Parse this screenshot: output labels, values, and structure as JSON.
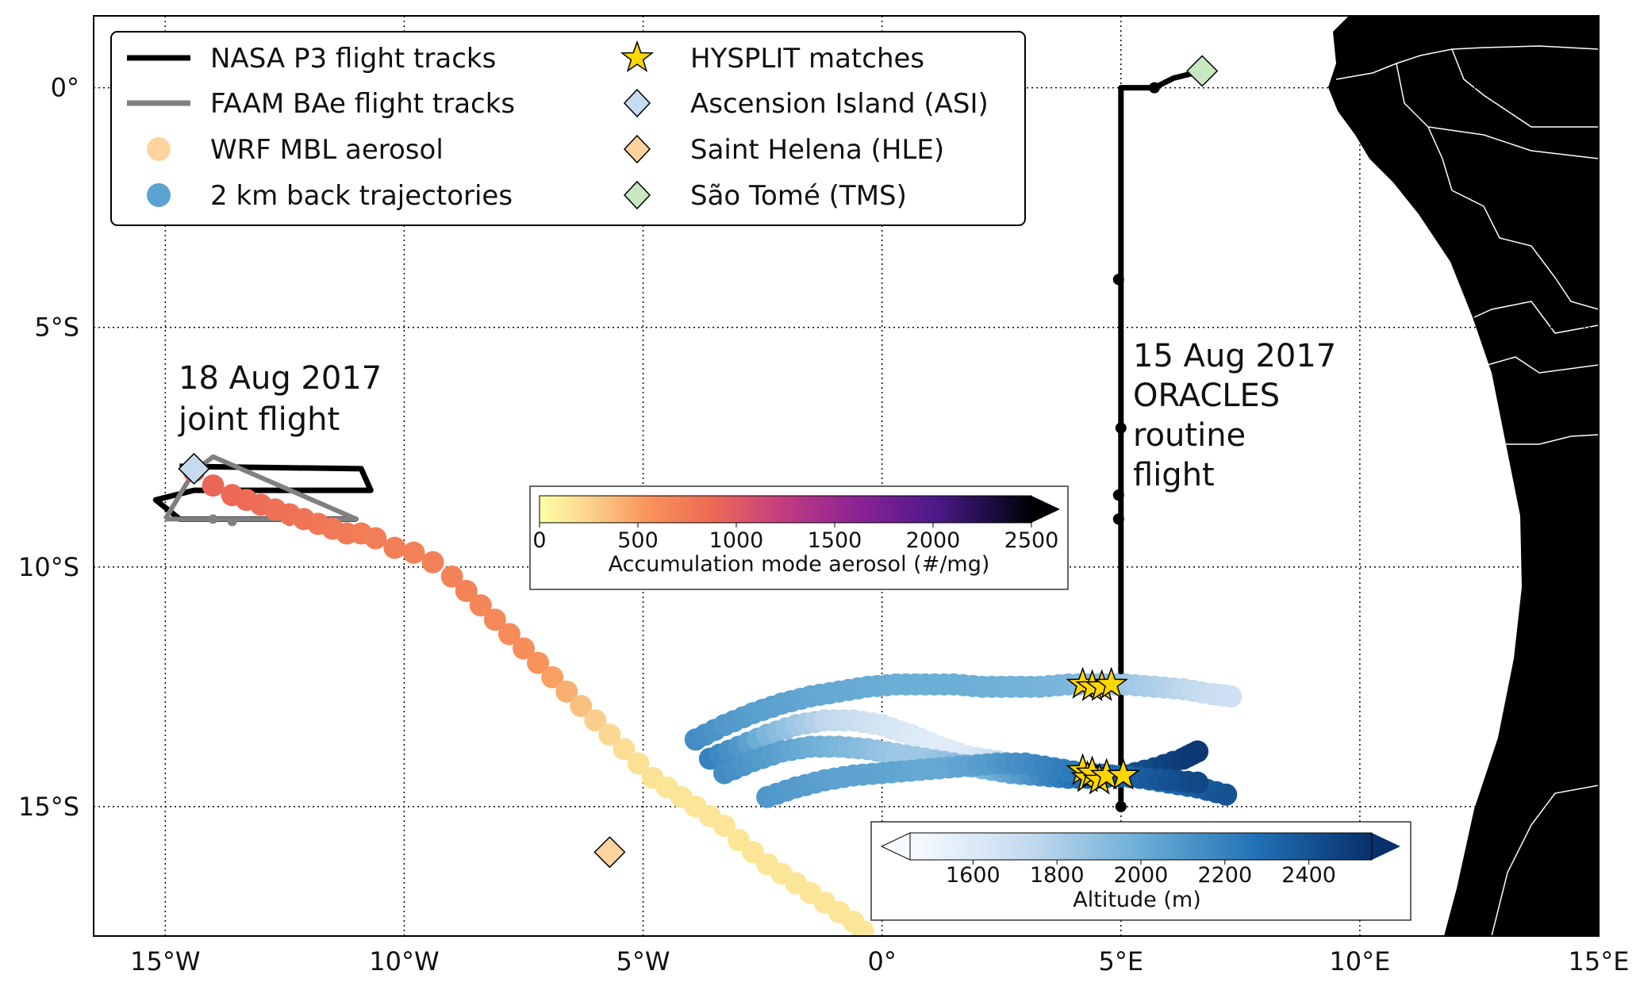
{
  "map": {
    "lon_range": [
      -16.5,
      15
    ],
    "lat_range": [
      -17.7,
      1.5
    ],
    "x_ticks": [
      {
        "value": -15,
        "label": "15°W"
      },
      {
        "value": -10,
        "label": "10°W"
      },
      {
        "value": -5,
        "label": "5°W"
      },
      {
        "value": 0,
        "label": "0°"
      },
      {
        "value": 5,
        "label": "5°E"
      },
      {
        "value": 10,
        "label": "10°E"
      },
      {
        "value": 15,
        "label": "15°E"
      }
    ],
    "y_ticks": [
      {
        "value": 0,
        "label": "0°"
      },
      {
        "value": -5,
        "label": "5°S"
      },
      {
        "value": -10,
        "label": "10°S"
      },
      {
        "value": -15,
        "label": "15°S"
      }
    ],
    "grid": "dotted",
    "land_color": "#000000",
    "border_color": "#ffffff"
  },
  "legend": {
    "placement": "top-left",
    "entries": [
      {
        "key": "p3",
        "label": "NASA P3 flight tracks",
        "symbol": "line",
        "color": "#000000"
      },
      {
        "key": "bae",
        "label": "FAAM BAe flight tracks",
        "symbol": "line",
        "color": "#808080"
      },
      {
        "key": "wrf",
        "label": "WRF MBL aerosol",
        "symbol": "circle",
        "color": "#fdd49e"
      },
      {
        "key": "traj",
        "label": "2 km back trajectories",
        "symbol": "circle",
        "color": "#5ba3d0"
      },
      {
        "key": "hysplit",
        "label": "HYSPLIT matches",
        "symbol": "star",
        "color": "#ffd700"
      },
      {
        "key": "asi",
        "label": "Ascension Island (ASI)",
        "symbol": "diamond",
        "color": "#c6dbef"
      },
      {
        "key": "hle",
        "label": "Saint Helena (HLE)",
        "symbol": "diamond",
        "color": "#fdd49e"
      },
      {
        "key": "tms",
        "label": "São Tomé (TMS)",
        "symbol": "diamond",
        "color": "#c7e9c0"
      }
    ]
  },
  "annotations": {
    "joint": [
      "18 Aug 2017",
      "joint flight"
    ],
    "routine": [
      "15 Aug 2017",
      "ORACLES",
      "routine",
      "flight"
    ]
  },
  "colorbars": {
    "aerosol": {
      "label": "Accumulation mode aerosol (#/mg)",
      "ticks": [
        "0",
        "500",
        "1000",
        "1500",
        "2000",
        "2500"
      ],
      "range": [
        0,
        2500
      ],
      "colormap": "inferno_r"
    },
    "altitude": {
      "label": "Altitude (m)",
      "ticks": [
        "1600",
        "1800",
        "2000",
        "2200",
        "2400"
      ],
      "range": [
        1450,
        2550
      ],
      "colormap": "Blues"
    }
  },
  "chart_data": {
    "type": "scatter",
    "stations": [
      {
        "name": "Ascension Island (ASI)",
        "lon": -14.4,
        "lat": -7.95,
        "color": "#c6dbef"
      },
      {
        "name": "Saint Helena (HLE)",
        "lon": -5.7,
        "lat": -15.95,
        "color": "#fdd49e"
      },
      {
        "name": "São Tomé (TMS)",
        "lon": 6.7,
        "lat": 0.35,
        "color": "#c7e9c0"
      }
    ],
    "p3_routine_track": [
      [
        5.0,
        -15.0
      ],
      [
        5.0,
        0.0
      ],
      [
        5.7,
        0.0
      ],
      [
        6.1,
        0.2
      ],
      [
        6.7,
        0.35
      ]
    ],
    "p3_routine_points": [
      [
        5.0,
        -15.0
      ],
      [
        4.95,
        -4.0
      ],
      [
        5.0,
        -7.1
      ],
      [
        4.95,
        -8.5
      ],
      [
        4.95,
        -9.0
      ],
      [
        5.7,
        0.0
      ],
      [
        6.6,
        0.35
      ]
    ],
    "p3_joint_track": [
      [
        -14.7,
        -7.9
      ],
      [
        -10.9,
        -7.95
      ],
      [
        -10.7,
        -8.4
      ],
      [
        -14.4,
        -8.4
      ],
      [
        -15.2,
        -8.6
      ],
      [
        -14.7,
        -9.0
      ],
      [
        -11.0,
        -9.0
      ]
    ],
    "bae_joint_track": [
      [
        -15.0,
        -9.0
      ],
      [
        -11.0,
        -9.0
      ],
      [
        -14.0,
        -7.7
      ],
      [
        -14.4,
        -8.0
      ],
      [
        -15.0,
        -9.0
      ]
    ],
    "bae_joint_points": [
      [
        -13.6,
        -9.05
      ],
      [
        -12.4,
        -9.05
      ],
      [
        -11.7,
        -9.05
      ],
      [
        -14.0,
        -9.0
      ]
    ],
    "wrf_mbl_aerosol": {
      "lon": [
        -14.4,
        -14.0,
        -13.6,
        -13.3,
        -13.0,
        -12.7,
        -12.4,
        -12.1,
        -11.8,
        -11.5,
        -11.2,
        -10.9,
        -10.6,
        -10.2,
        -9.8,
        -9.4,
        -9.0,
        -8.7,
        -8.4,
        -8.1,
        -7.8,
        -7.5,
        -7.2,
        -6.9,
        -6.6,
        -6.3,
        -6.0,
        -5.7,
        -5.4,
        -5.1,
        -4.8,
        -4.5,
        -4.2,
        -3.9,
        -3.6,
        -3.3,
        -3.0,
        -2.7,
        -2.4,
        -2.1,
        -1.8,
        -1.5,
        -1.2,
        -0.9,
        -0.6,
        -0.4
      ],
      "lat": [
        -8.0,
        -8.3,
        -8.5,
        -8.6,
        -8.7,
        -8.8,
        -8.9,
        -9.0,
        -9.1,
        -9.2,
        -9.3,
        -9.3,
        -9.4,
        -9.6,
        -9.7,
        -9.9,
        -10.2,
        -10.5,
        -10.8,
        -11.1,
        -11.4,
        -11.7,
        -12.0,
        -12.3,
        -12.6,
        -12.9,
        -13.2,
        -13.5,
        -13.8,
        -14.1,
        -14.4,
        -14.6,
        -14.8,
        -15.0,
        -15.2,
        -15.4,
        -15.7,
        -15.95,
        -16.2,
        -16.4,
        -16.6,
        -16.8,
        -17.0,
        -17.2,
        -17.4,
        -17.6
      ],
      "aerosol": [
        900,
        900,
        880,
        860,
        850,
        830,
        820,
        800,
        780,
        760,
        740,
        730,
        720,
        710,
        700,
        700,
        690,
        680,
        660,
        640,
        620,
        600,
        560,
        500,
        420,
        340,
        270,
        220,
        190,
        170,
        160,
        150,
        150,
        150,
        150,
        150,
        150,
        150,
        150,
        150,
        150,
        150,
        150,
        150,
        150,
        150
      ]
    },
    "back_trajectories": [
      {
        "lon": [
          -3.9,
          -3.3,
          -2.7,
          -2.1,
          -1.5,
          -0.9,
          -0.3,
          0.3,
          0.9,
          1.5,
          2.1,
          2.7,
          3.3,
          3.9,
          4.5,
          5.1,
          5.7,
          6.3,
          6.9,
          7.3
        ],
        "lat": [
          -13.6,
          -13.3,
          -13.05,
          -12.85,
          -12.7,
          -12.6,
          -12.5,
          -12.45,
          -12.45,
          -12.45,
          -12.5,
          -12.5,
          -12.5,
          -12.45,
          -12.45,
          -12.45,
          -12.5,
          -12.55,
          -12.65,
          -12.7
        ],
        "alt": [
          2150,
          2100,
          2070,
          2050,
          2030,
          2020,
          2010,
          2000,
          2000,
          2000,
          1990,
          1980,
          1970,
          1950,
          1900,
          1850,
          1800,
          1750,
          1700,
          1680
        ]
      },
      {
        "lon": [
          -3.6,
          -3.0,
          -2.4,
          -1.8,
          -1.2,
          -0.6,
          0.0,
          0.6,
          1.2,
          1.8,
          2.4,
          3.0,
          3.6,
          4.2,
          4.8,
          5.4,
          6.0,
          6.6,
          7.2
        ],
        "lat": [
          -14.0,
          -13.75,
          -13.5,
          -13.3,
          -13.2,
          -13.2,
          -13.3,
          -13.5,
          -13.75,
          -13.95,
          -14.05,
          -14.15,
          -14.25,
          -14.3,
          -14.35,
          -14.4,
          -14.5,
          -14.6,
          -14.75
        ],
        "alt": [
          2200,
          2100,
          1950,
          1850,
          1750,
          1700,
          1650,
          1600,
          1580,
          1600,
          1700,
          1800,
          1900,
          2000,
          2100,
          2200,
          2300,
          2350,
          2400
        ]
      },
      {
        "lon": [
          -3.3,
          -2.7,
          -2.1,
          -1.5,
          -0.9,
          -0.3,
          0.3,
          0.9,
          1.5,
          2.1,
          2.7,
          3.3,
          3.9,
          4.5,
          5.1,
          5.7,
          6.3,
          6.6
        ],
        "lat": [
          -14.3,
          -14.05,
          -13.85,
          -13.75,
          -13.75,
          -13.8,
          -13.9,
          -14.0,
          -14.1,
          -14.2,
          -14.3,
          -14.35,
          -14.4,
          -14.4,
          -14.35,
          -14.2,
          -14.0,
          -13.85
        ],
        "alt": [
          2150,
          2100,
          2050,
          2000,
          1950,
          1900,
          1850,
          1850,
          1900,
          1950,
          2050,
          2150,
          2250,
          2350,
          2400,
          2450,
          2500,
          2520
        ]
      },
      {
        "lon": [
          -2.4,
          -1.8,
          -1.2,
          -0.6,
          0.0,
          0.6,
          1.2,
          1.8,
          2.4,
          3.0,
          3.6,
          4.2,
          4.8,
          5.4,
          6.0,
          6.6
        ],
        "lat": [
          -14.8,
          -14.6,
          -14.45,
          -14.35,
          -14.3,
          -14.25,
          -14.2,
          -14.15,
          -14.1,
          -14.1,
          -14.2,
          -14.3,
          -14.35,
          -14.4,
          -14.45,
          -14.5
        ],
        "alt": [
          2100,
          2080,
          2060,
          2050,
          2040,
          2030,
          2020,
          2050,
          2100,
          2150,
          2200,
          2250,
          2300,
          2350,
          2400,
          2450
        ]
      }
    ],
    "hysplit_matches": [
      {
        "lon": 4.2,
        "lat": -12.45
      },
      {
        "lon": 4.4,
        "lat": -12.5
      },
      {
        "lon": 4.6,
        "lat": -12.5
      },
      {
        "lon": 4.8,
        "lat": -12.45
      },
      {
        "lon": 4.2,
        "lat": -14.25
      },
      {
        "lon": 4.3,
        "lat": -14.4
      },
      {
        "lon": 4.4,
        "lat": -14.3
      },
      {
        "lon": 4.55,
        "lat": -14.45
      },
      {
        "lon": 4.7,
        "lat": -14.35
      },
      {
        "lon": 5.05,
        "lat": -14.35
      }
    ]
  }
}
